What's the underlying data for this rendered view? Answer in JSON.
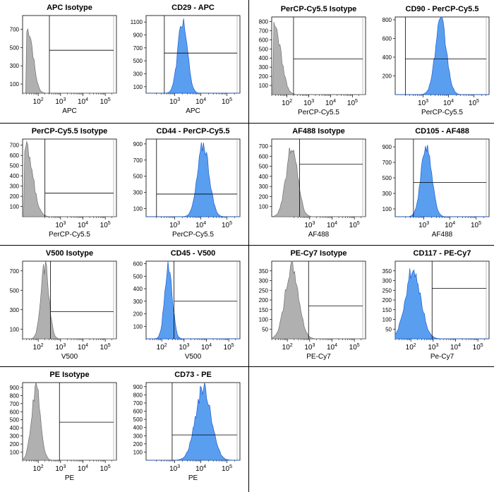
{
  "colors": {
    "isotype_fill": "#b0b0b0",
    "isotype_line": "#707070",
    "stain_fill": "#5a9ef0",
    "stain_line": "#1f5fd0",
    "gate": "#000000"
  },
  "chart_data": [
    {
      "type": "area",
      "title": "APC Isotype",
      "xlabel": "APC",
      "y_ticks": [
        100,
        300,
        500,
        700
      ],
      "ylim": [
        0,
        850
      ],
      "x_ticks": [
        "10^2",
        "10^3",
        "10^4",
        "10^5"
      ],
      "xlim_log10": [
        1.3,
        5.5
      ],
      "gate_x_log10": 2.5,
      "gate_y": 470,
      "fill": "isotype",
      "peak": {
        "center_log10": 1.55,
        "width": 0.22,
        "height": 720,
        "left_cut_log10": 1.45
      }
    },
    {
      "type": "area",
      "title": "CD29 - APC",
      "xlabel": "APC",
      "y_ticks": [
        100,
        300,
        500,
        700,
        900,
        1100
      ],
      "ylim": [
        0,
        1200
      ],
      "x_ticks": [
        "10^3",
        "10^4",
        "10^5"
      ],
      "xlim_log10": [
        1.9,
        5.5
      ],
      "gate_x_log10": 2.6,
      "gate_y": 620,
      "fill": "stain",
      "peak": {
        "center_log10": 3.3,
        "width": 0.18,
        "height": 1160
      }
    },
    {
      "type": "area",
      "title": "PerCP-Cy5.5 Isotype",
      "xlabel": "PerCP-Cy5.5",
      "y_ticks": [
        100,
        200,
        300,
        400,
        500,
        600,
        700,
        800
      ],
      "ylim": [
        0,
        850
      ],
      "x_ticks": [
        "10^2",
        "10^3",
        "10^4",
        "10^5"
      ],
      "xlim_log10": [
        1.3,
        5.6
      ],
      "gate_x_log10": 2.3,
      "gate_y": 390,
      "fill": "isotype",
      "peak": {
        "center_log10": 1.45,
        "width": 0.28,
        "height": 760,
        "left_cut_log10": 1.35
      }
    },
    {
      "type": "area",
      "title": "CD90 - PerCP-Cy5.5",
      "xlabel": "PerCP-Cy5.5",
      "y_ticks": [
        200,
        400,
        600,
        800
      ],
      "ylim": [
        0,
        830
      ],
      "x_ticks": [
        "10^3",
        "10^4",
        "10^5"
      ],
      "xlim_log10": [
        1.9,
        5.6
      ],
      "gate_x_log10": 2.3,
      "gate_y": 380,
      "fill": "stain",
      "peak": {
        "center_log10": 3.7,
        "width": 0.22,
        "height": 800
      }
    },
    {
      "type": "area",
      "title": "PerCP-Cy5.5 Isotype",
      "xlabel": "PerCP-Cy5.5",
      "y_ticks": [
        100,
        200,
        300,
        400,
        500,
        600,
        700
      ],
      "ylim": [
        0,
        760
      ],
      "x_ticks": [
        "10^3",
        "10^4",
        "10^5"
      ],
      "xlim_log10": [
        1.3,
        5.5
      ],
      "gate_x_log10": 2.3,
      "gate_y": 230,
      "fill": "isotype",
      "peak": {
        "center_log10": 1.45,
        "width": 0.3,
        "height": 690,
        "left_cut_log10": 1.35
      }
    },
    {
      "type": "area",
      "title": "CD44 - PerCP-Cy5.5",
      "xlabel": "PerCP-Cy5.5",
      "y_ticks": [
        100,
        300,
        500,
        700,
        900
      ],
      "ylim": [
        0,
        960
      ],
      "x_ticks": [
        "10^3",
        "10^4",
        "10^5"
      ],
      "xlim_log10": [
        1.9,
        5.5
      ],
      "gate_x_log10": 2.3,
      "gate_y": 280,
      "fill": "stain",
      "peak": {
        "center_log10": 4.1,
        "width": 0.22,
        "height": 920
      }
    },
    {
      "type": "area",
      "title": "AF488 Isotype",
      "xlabel": "AF488",
      "y_ticks": [
        100,
        200,
        300,
        400,
        500,
        600,
        700
      ],
      "ylim": [
        0,
        770
      ],
      "x_ticks": [
        "10^3",
        "10^4",
        "10^5"
      ],
      "xlim_log10": [
        1.3,
        5.5
      ],
      "gate_x_log10": 2.55,
      "gate_y": 520,
      "fill": "isotype",
      "peak": {
        "center_log10": 2.2,
        "width": 0.26,
        "height": 690
      }
    },
    {
      "type": "area",
      "title": "CD105 - AF488",
      "xlabel": "AF488",
      "y_ticks": [
        100,
        300,
        500,
        700,
        900
      ],
      "ylim": [
        0,
        1000
      ],
      "x_ticks": [
        "10^3",
        "10^4",
        "10^5"
      ],
      "xlim_log10": [
        1.9,
        5.5
      ],
      "gate_x_log10": 2.6,
      "gate_y": 440,
      "fill": "stain",
      "peak": {
        "center_log10": 3.1,
        "width": 0.2,
        "height": 960
      }
    },
    {
      "type": "area",
      "title": "V500 Isotype",
      "xlabel": "V500",
      "y_ticks": [
        100,
        300,
        500,
        700
      ],
      "ylim": [
        0,
        800
      ],
      "x_ticks": [
        "10^2",
        "10^3",
        "10^4",
        "10^5"
      ],
      "xlim_log10": [
        1.3,
        5.5
      ],
      "gate_x_log10": 2.55,
      "gate_y": 280,
      "fill": "isotype",
      "peak": {
        "center_log10": 2.3,
        "width": 0.18,
        "height": 770
      }
    },
    {
      "type": "area",
      "title": "CD45 - V500",
      "xlabel": "V500",
      "y_ticks": [
        100,
        200,
        300,
        400,
        500,
        600
      ],
      "ylim": [
        0,
        620
      ],
      "x_ticks": [
        "10^2",
        "10^3",
        "10^4",
        "10^5"
      ],
      "xlim_log10": [
        1.3,
        5.5
      ],
      "gate_x_log10": 2.55,
      "gate_y": 300,
      "fill": "stain",
      "peak": {
        "center_log10": 2.3,
        "width": 0.17,
        "height": 600
      }
    },
    {
      "type": "area",
      "title": "PE-Cy7 Isotype",
      "xlabel": "PE-Cy7",
      "y_ticks": [
        50,
        100,
        150,
        200,
        250,
        300,
        350
      ],
      "ylim": [
        0,
        400
      ],
      "x_ticks": [
        "10^2",
        "10^3",
        "10^4",
        "10^5"
      ],
      "xlim_log10": [
        1.3,
        5.5
      ],
      "gate_x_log10": 2.95,
      "gate_y": 170,
      "fill": "isotype",
      "peak": {
        "center_log10": 2.2,
        "width": 0.3,
        "height": 380
      }
    },
    {
      "type": "area",
      "title": "CD117 - PE-Cy7",
      "xlabel": "Pe-Cy7",
      "y_ticks": [
        50,
        100,
        150,
        200,
        250,
        300,
        350
      ],
      "ylim": [
        0,
        400
      ],
      "x_ticks": [
        "10^2",
        "10^3",
        "10^4",
        "10^5"
      ],
      "xlim_log10": [
        1.3,
        5.5
      ],
      "gate_x_log10": 2.95,
      "gate_y": 260,
      "fill": "stain",
      "peak": {
        "center_log10": 2.1,
        "width": 0.34,
        "height": 370
      }
    },
    {
      "type": "area",
      "title": "PE Isotype",
      "xlabel": "PE",
      "y_ticks": [
        100,
        200,
        300,
        400,
        500,
        600,
        700,
        800,
        900
      ],
      "ylim": [
        0,
        960
      ],
      "x_ticks": [
        "10^2",
        "10^3",
        "10^4",
        "10^5"
      ],
      "xlim_log10": [
        1.3,
        5.5
      ],
      "gate_x_log10": 2.95,
      "gate_y": 470,
      "fill": "isotype",
      "peak": {
        "center_log10": 1.9,
        "width": 0.2,
        "height": 920
      }
    },
    {
      "type": "area",
      "title": "CD73 - PE",
      "xlabel": "PE",
      "y_ticks": [
        100,
        200,
        300,
        400,
        500,
        600,
        700,
        800,
        900
      ],
      "ylim": [
        0,
        950
      ],
      "x_ticks": [
        "10^3",
        "10^4",
        "10^5"
      ],
      "xlim_log10": [
        1.9,
        5.5
      ],
      "gate_x_log10": 2.9,
      "gate_y": 310,
      "fill": "stain",
      "peak": {
        "center_log10": 4.1,
        "width": 0.3,
        "height": 920
      }
    }
  ]
}
